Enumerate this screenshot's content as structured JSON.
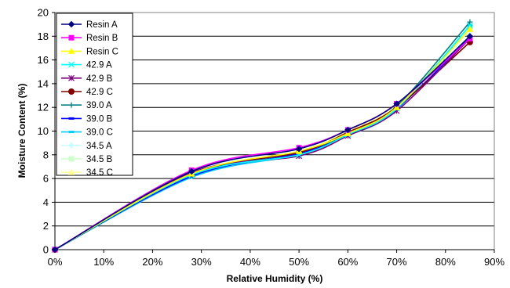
{
  "chart_data": {
    "type": "line",
    "xlabel": "Relative Humidity (%)",
    "ylabel": "Moisture Content (%)",
    "x": [
      0,
      28,
      50,
      60,
      70,
      85
    ],
    "xlim": [
      0,
      90
    ],
    "ylim": [
      0,
      20
    ],
    "x_ticks": [
      "0%",
      "10%",
      "20%",
      "30%",
      "40%",
      "50%",
      "60%",
      "70%",
      "80%",
      "90%"
    ],
    "y_ticks": [
      "0",
      "2",
      "4",
      "6",
      "8",
      "10",
      "12",
      "14",
      "16",
      "18",
      "20"
    ],
    "grid": "horizontal",
    "legend_position": "top-left",
    "series": [
      {
        "name": "Resin A",
        "color": "#000080",
        "marker": "diamond",
        "values": [
          0,
          6.6,
          8.5,
          10.1,
          12.3,
          18.0
        ]
      },
      {
        "name": "Resin B",
        "color": "#FF00FF",
        "marker": "square",
        "values": [
          0,
          6.7,
          8.6,
          10.1,
          12.3,
          17.8
        ]
      },
      {
        "name": "Resin C",
        "color": "#FFFF00",
        "marker": "triangle",
        "values": [
          0,
          6.4,
          8.3,
          9.8,
          12.0,
          18.6
        ]
      },
      {
        "name": "42.9 A",
        "color": "#00FFFF",
        "marker": "x",
        "values": [
          0,
          6.3,
          8.0,
          9.7,
          11.9,
          18.9
        ]
      },
      {
        "name": "42.9 B",
        "color": "#800080",
        "marker": "star",
        "values": [
          0,
          6.5,
          7.9,
          9.6,
          11.7,
          17.8
        ]
      },
      {
        "name": "42.9 C",
        "color": "#800000",
        "marker": "circle",
        "values": [
          0,
          6.4,
          8.2,
          9.9,
          12.0,
          17.5
        ]
      },
      {
        "name": "39.0 A",
        "color": "#008080",
        "marker": "plus",
        "values": [
          0,
          6.3,
          8.2,
          9.8,
          12.1,
          19.2
        ]
      },
      {
        "name": "39.0 B",
        "color": "#0000FF",
        "marker": "dash",
        "values": [
          0,
          6.2,
          8.1,
          9.7,
          11.9,
          17.9
        ]
      },
      {
        "name": "39.0 C",
        "color": "#00CCFF",
        "marker": "dash",
        "values": [
          0,
          6.1,
          8.0,
          9.6,
          11.8,
          18.9
        ]
      },
      {
        "name": "34.5 A",
        "color": "#CCFFFF",
        "marker": "diamond",
        "values": [
          0,
          6.2,
          8.1,
          9.8,
          12.0,
          18.5
        ]
      },
      {
        "name": "34.5 B",
        "color": "#CCFFCC",
        "marker": "square",
        "values": [
          0,
          6.3,
          8.2,
          9.9,
          12.1,
          18.6
        ]
      },
      {
        "name": "34.5 C",
        "color": "#FFFF99",
        "marker": "triangle",
        "values": [
          0,
          6.4,
          8.3,
          10.0,
          12.2,
          18.7
        ]
      }
    ]
  }
}
